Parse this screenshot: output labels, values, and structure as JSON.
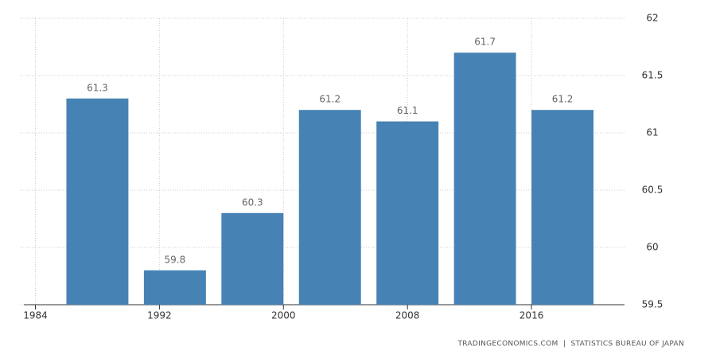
{
  "chart_data": {
    "type": "bar",
    "x": [
      1988,
      1993,
      1998,
      2003,
      2008,
      2013,
      2018
    ],
    "values": [
      61.3,
      59.8,
      60.3,
      61.2,
      61.1,
      61.7,
      61.2
    ],
    "color": "#4682b4",
    "xlim": [
      1983,
      2022
    ],
    "xticks": [
      1984,
      1992,
      2000,
      2008,
      2016
    ],
    "ylim": [
      59.5,
      62
    ],
    "yticks": [
      59.5,
      60,
      60.5,
      61,
      61.5,
      62
    ],
    "grid": true,
    "source": "TRADINGECONOMICS.COM  |  STATISTICS BUREAU OF JAPAN"
  }
}
